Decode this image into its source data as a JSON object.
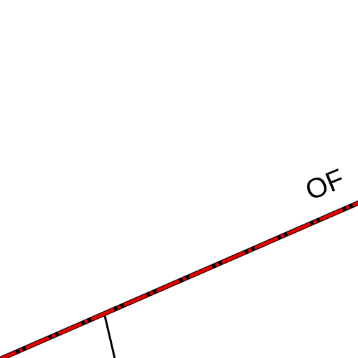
{
  "map": {
    "road_label": "OF",
    "colors": {
      "background": "#ffffff",
      "road_casing": "#000000",
      "road_dash": "#e00000",
      "side_road": "#000000",
      "label": "#000000"
    }
  }
}
